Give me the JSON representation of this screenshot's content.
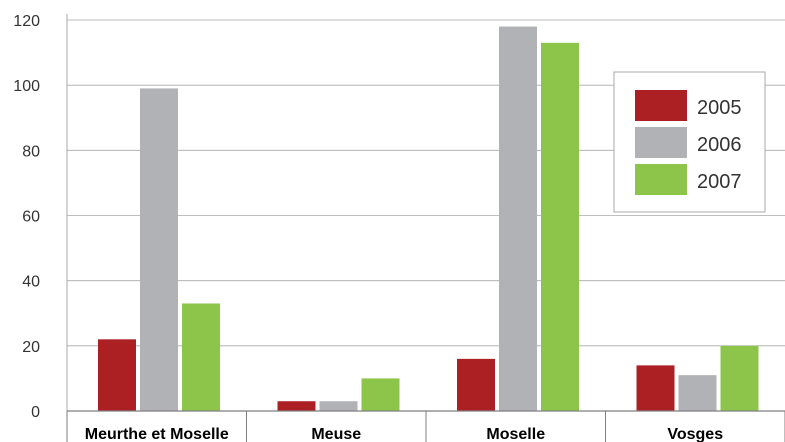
{
  "chart_data": {
    "type": "bar",
    "categories": [
      "Meurthe et Moselle",
      "Meuse",
      "Moselle",
      "Vosges"
    ],
    "series": [
      {
        "name": "2005",
        "values": [
          22,
          3,
          16,
          14
        ],
        "color": "#ac2024"
      },
      {
        "name": "2006",
        "values": [
          99,
          3,
          118,
          11
        ],
        "color": "#b1b2b6"
      },
      {
        "name": "2007",
        "values": [
          33,
          10,
          113,
          20
        ],
        "color": "#8dc54b"
      }
    ],
    "yticks": [
      "0",
      "20",
      "40",
      "60",
      "80",
      "100",
      "120"
    ],
    "ylim": [
      0,
      120
    ],
    "grid": true,
    "legend": "top-right"
  }
}
